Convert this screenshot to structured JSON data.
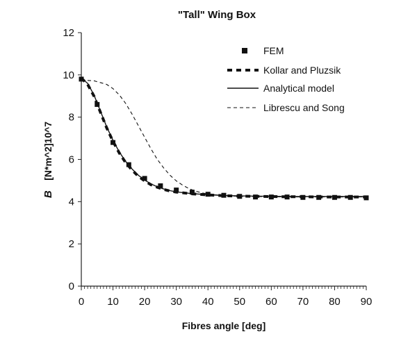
{
  "chart_data": {
    "type": "line",
    "title": "\"Tall\" Wing Box",
    "xlabel": "Fibres angle [deg]",
    "ylabel_symbol": "B",
    "ylabel_units": "[N*m^2]10^7",
    "xlim": [
      0,
      90
    ],
    "ylim": [
      0,
      12
    ],
    "xticks": [
      0,
      10,
      20,
      30,
      40,
      50,
      60,
      70,
      80,
      90
    ],
    "yticks": [
      0,
      2,
      4,
      6,
      8,
      10,
      12
    ],
    "grid": false,
    "legend_position": "top-right",
    "series": [
      {
        "name": "FEM",
        "style": "markers",
        "marker": "square",
        "x": [
          0,
          5,
          10,
          15,
          20,
          25,
          30,
          35,
          40,
          45,
          50,
          55,
          60,
          65,
          70,
          75,
          80,
          85,
          90
        ],
        "y": [
          9.8,
          8.6,
          6.8,
          5.75,
          5.1,
          4.75,
          4.55,
          4.45,
          4.35,
          4.3,
          4.25,
          4.22,
          4.22,
          4.22,
          4.2,
          4.2,
          4.2,
          4.2,
          4.18
        ]
      },
      {
        "name": "Kollar and Pluzsik",
        "style": "thick-dashed",
        "x": [
          0,
          2,
          4,
          6,
          8,
          10,
          12,
          14,
          16,
          18,
          20,
          22,
          24,
          26,
          28,
          30,
          35,
          40,
          45,
          50,
          55,
          60,
          65,
          70,
          75,
          80,
          85,
          90
        ],
        "y": [
          9.85,
          9.55,
          9.0,
          8.25,
          7.5,
          6.85,
          6.3,
          5.85,
          5.5,
          5.2,
          4.98,
          4.8,
          4.68,
          4.58,
          4.5,
          4.45,
          4.37,
          4.32,
          4.28,
          4.26,
          4.25,
          4.24,
          4.23,
          4.23,
          4.22,
          4.22,
          4.22,
          4.22
        ]
      },
      {
        "name": "Analytical model",
        "style": "solid",
        "x": [
          0,
          2,
          4,
          6,
          8,
          10,
          12,
          14,
          16,
          18,
          20,
          22,
          24,
          26,
          28,
          30,
          35,
          40,
          45,
          50,
          55,
          60,
          65,
          70,
          75,
          80,
          85,
          90
        ],
        "y": [
          9.85,
          9.6,
          9.05,
          8.3,
          7.55,
          6.9,
          6.35,
          5.9,
          5.55,
          5.25,
          5.02,
          4.84,
          4.7,
          4.6,
          4.52,
          4.46,
          4.38,
          4.33,
          4.29,
          4.27,
          4.26,
          4.25,
          4.24,
          4.24,
          4.24,
          4.24,
          4.24,
          4.24
        ]
      },
      {
        "name": "Librescu and Song",
        "style": "thin-dashed",
        "x": [
          0,
          4,
          8,
          10,
          12,
          14,
          16,
          18,
          20,
          22,
          24,
          26,
          28,
          30,
          32,
          34,
          36,
          38,
          40,
          45,
          50,
          55,
          60,
          70,
          80,
          90
        ],
        "y": [
          9.75,
          9.72,
          9.55,
          9.35,
          9.05,
          8.65,
          8.15,
          7.6,
          7.05,
          6.5,
          6.0,
          5.6,
          5.25,
          4.98,
          4.78,
          4.62,
          4.5,
          4.42,
          4.36,
          4.28,
          4.25,
          4.24,
          4.23,
          4.22,
          4.22,
          4.22
        ]
      }
    ]
  }
}
